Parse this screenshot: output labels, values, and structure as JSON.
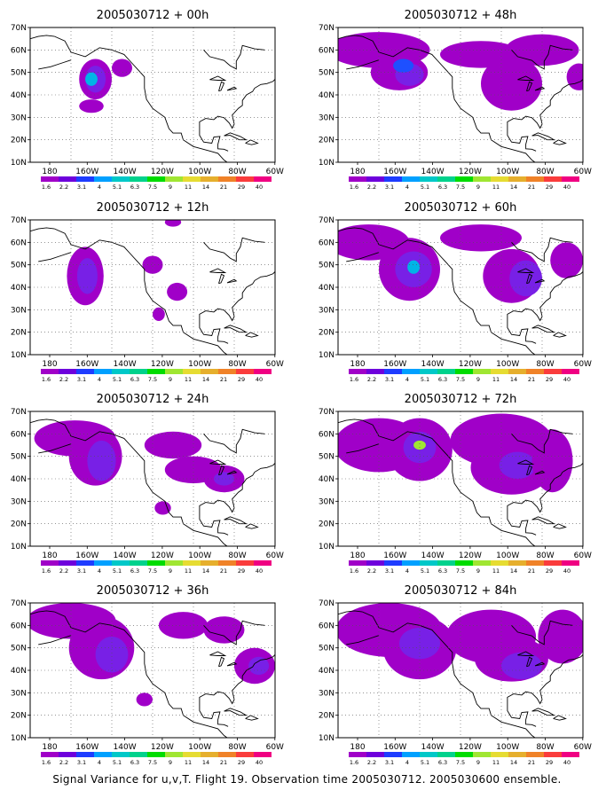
{
  "panels": [
    {
      "title": "2005030712 + 00h"
    },
    {
      "title": "2005030712 + 48h"
    },
    {
      "title": "2005030712 + 12h"
    },
    {
      "title": "2005030712 + 60h"
    },
    {
      "title": "2005030712 + 24h"
    },
    {
      "title": "2005030712 + 72h"
    },
    {
      "title": "2005030712 + 36h"
    },
    {
      "title": "2005030712 + 84h"
    }
  ],
  "y_ticks": [
    "70N",
    "60N",
    "50N",
    "40N",
    "30N",
    "20N",
    "10N"
  ],
  "x_ticks": [
    "180",
    "160W",
    "140W",
    "120W",
    "100W",
    "80W",
    "60W"
  ],
  "colorbar": {
    "labels": [
      "1.6",
      "2.2",
      "3.1",
      "4",
      "5.1",
      "6.3",
      "7.5",
      "9",
      "11",
      "14",
      "21",
      "29",
      "40"
    ],
    "colors": [
      "#a000c8",
      "#6e00dc",
      "#1e3cff",
      "#00a0ff",
      "#00c8c8",
      "#00d28c",
      "#00dc00",
      "#a0e632",
      "#e6dc32",
      "#e6af2d",
      "#f08228",
      "#fa3c3c",
      "#f00082"
    ]
  },
  "footer": "Signal Variance for u,v,T. Flight 19. Observation time 2005030712. 2005030600 ensemble."
}
